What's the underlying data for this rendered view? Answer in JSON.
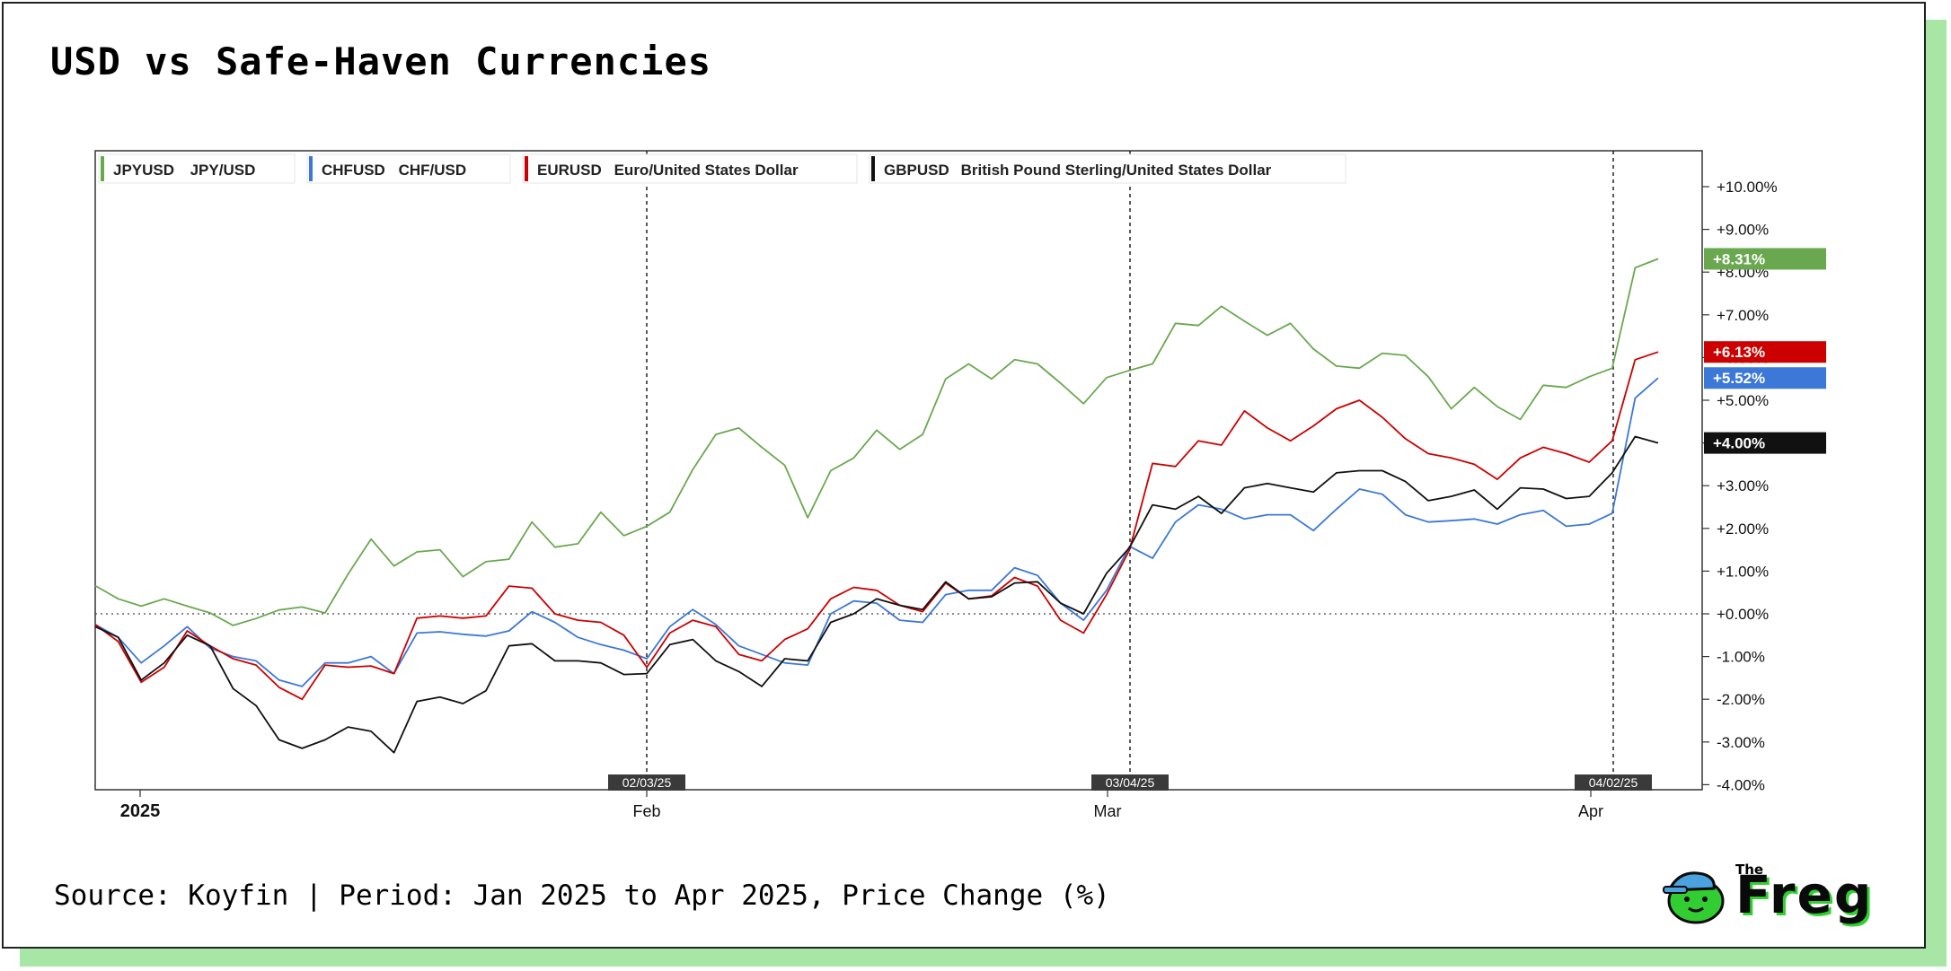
{
  "title": "USD vs Safe-Haven Currencies",
  "source": "Source: Koyfin | Period: Jan 2025 to Apr 2025, Price Change (%)",
  "logo": {
    "small": "The",
    "word": "Freg"
  },
  "chart_data": {
    "type": "line",
    "x_axis_labels": [
      "2025",
      "Feb",
      "Mar",
      "Apr"
    ],
    "y_ticks": [
      "+10.00%",
      "+9.00%",
      "+8.00%",
      "+7.00%",
      "+6.00%",
      "+5.00%",
      "+4.00%",
      "+3.00%",
      "+2.00%",
      "+1.00%",
      "+0.00%",
      "-1.00%",
      "-2.00%",
      "-3.00%",
      "-4.00%"
    ],
    "ylim": [
      -4,
      10.5
    ],
    "event_markers": [
      "02/03/25",
      "03/04/25",
      "04/02/25"
    ],
    "legend_position": "top-left",
    "series": [
      {
        "ticker": "JPYUSD",
        "name": "JPY/USD",
        "color": "#6aa84f",
        "last_label": "+8.31%",
        "values": [
          0.66,
          0.35,
          0.18,
          0.35,
          0.18,
          0.02,
          -0.27,
          -0.11,
          0.09,
          0.16,
          0.02,
          0.93,
          1.75,
          1.12,
          1.45,
          1.5,
          0.87,
          1.22,
          1.28,
          2.15,
          1.56,
          1.64,
          2.38,
          1.83,
          2.05,
          2.38,
          3.38,
          4.2,
          4.35,
          3.9,
          3.48,
          2.25,
          3.35,
          3.65,
          4.3,
          3.85,
          4.2,
          5.5,
          5.85,
          5.5,
          5.95,
          5.85,
          5.4,
          4.92,
          5.53,
          5.7,
          5.85,
          6.8,
          6.75,
          7.2,
          6.85,
          6.52,
          6.8,
          6.2,
          5.8,
          5.75,
          6.1,
          6.05,
          5.55,
          4.8,
          5.3,
          4.85,
          4.55,
          5.35,
          5.3,
          5.55,
          5.75,
          8.1,
          8.31
        ]
      },
      {
        "ticker": "CHFUSD",
        "name": "CHF/USD",
        "color": "#3c78d8",
        "last_label": "+5.52%",
        "values": [
          -0.25,
          -0.55,
          -1.15,
          -0.75,
          -0.3,
          -0.8,
          -1.0,
          -1.1,
          -1.55,
          -1.7,
          -1.15,
          -1.15,
          -1.0,
          -1.4,
          -0.45,
          -0.42,
          -0.48,
          -0.52,
          -0.4,
          0.05,
          -0.2,
          -0.55,
          -0.72,
          -0.85,
          -1.05,
          -0.3,
          0.1,
          -0.25,
          -0.75,
          -0.95,
          -1.15,
          -1.2,
          0.0,
          0.3,
          0.25,
          -0.15,
          -0.2,
          0.45,
          0.55,
          0.55,
          1.08,
          0.9,
          0.25,
          -0.15,
          0.55,
          1.58,
          1.3,
          2.15,
          2.55,
          2.45,
          2.22,
          2.32,
          2.32,
          1.95,
          2.45,
          2.92,
          2.8,
          2.32,
          2.15,
          2.18,
          2.22,
          2.1,
          2.32,
          2.42,
          2.05,
          2.1,
          2.35,
          5.05,
          5.52
        ]
      },
      {
        "ticker": "EURUSD",
        "name": "Euro/United States Dollar",
        "color": "#cc0000",
        "last_label": "+6.13%",
        "values": [
          -0.25,
          -0.65,
          -1.6,
          -1.25,
          -0.4,
          -0.75,
          -1.05,
          -1.2,
          -1.72,
          -2.0,
          -1.2,
          -1.25,
          -1.22,
          -1.4,
          -0.1,
          -0.05,
          -0.1,
          -0.05,
          0.65,
          0.6,
          0.0,
          -0.15,
          -0.2,
          -0.5,
          -1.25,
          -0.45,
          -0.15,
          -0.3,
          -0.95,
          -1.1,
          -0.6,
          -0.35,
          0.35,
          0.62,
          0.55,
          0.2,
          0.05,
          0.72,
          0.35,
          0.42,
          0.85,
          0.65,
          -0.15,
          -0.45,
          0.45,
          1.5,
          3.52,
          3.45,
          4.05,
          3.95,
          4.75,
          4.35,
          4.05,
          4.4,
          4.8,
          5.0,
          4.6,
          4.1,
          3.75,
          3.65,
          3.5,
          3.15,
          3.65,
          3.9,
          3.75,
          3.55,
          4.05,
          5.95,
          6.13
        ]
      },
      {
        "ticker": "GBPUSD",
        "name": "British Pound Sterling/United States Dollar",
        "color": "#111111",
        "last_label": "+4.00%",
        "values": [
          -0.3,
          -0.55,
          -1.55,
          -1.15,
          -0.5,
          -0.75,
          -1.75,
          -2.15,
          -2.95,
          -3.15,
          -2.95,
          -2.65,
          -2.75,
          -3.25,
          -2.05,
          -1.95,
          -2.1,
          -1.8,
          -0.75,
          -0.7,
          -1.1,
          -1.1,
          -1.15,
          -1.42,
          -1.4,
          -0.72,
          -0.6,
          -1.1,
          -1.35,
          -1.7,
          -1.05,
          -1.1,
          -0.2,
          0.0,
          0.35,
          0.2,
          0.1,
          0.75,
          0.35,
          0.4,
          0.72,
          0.75,
          0.25,
          0.0,
          0.95,
          1.55,
          2.55,
          2.45,
          2.75,
          2.35,
          2.95,
          3.05,
          2.95,
          2.85,
          3.3,
          3.35,
          3.35,
          3.1,
          2.65,
          2.75,
          2.9,
          2.45,
          2.95,
          2.92,
          2.7,
          2.75,
          3.3,
          4.15,
          4.0
        ]
      }
    ]
  }
}
